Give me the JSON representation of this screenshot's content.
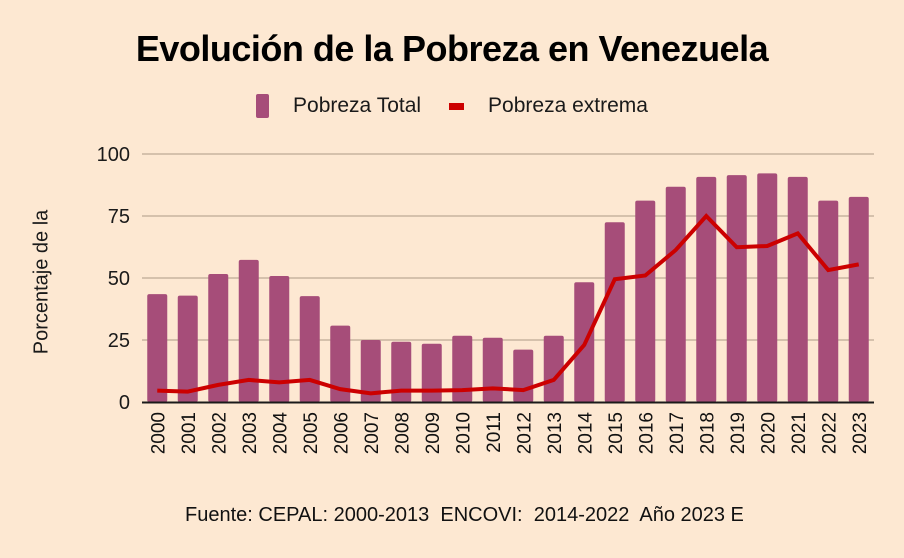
{
  "chart_data": {
    "type": "bar",
    "title": "Evolución de la Pobreza en Venezuela",
    "xlabel": "",
    "ylabel": "Porcentaje de la",
    "ylim": [
      0,
      100
    ],
    "yticks": [
      0,
      25,
      50,
      75,
      100
    ],
    "grid": true,
    "legend": "top-center",
    "categories": [
      "2000",
      "2001",
      "2002",
      "2003",
      "2004",
      "2005",
      "2006",
      "2007",
      "2008",
      "2009",
      "2010",
      "2011",
      "2012",
      "2013",
      "2014",
      "2015",
      "2016",
      "2017",
      "2018",
      "2019",
      "2020",
      "2021",
      "2022",
      "2023"
    ],
    "series": [
      {
        "name": "Pobreza Total",
        "type": "bar",
        "color": "#a64d79",
        "values": [
          43.5,
          42.9,
          51.6,
          57.3,
          50.8,
          42.7,
          30.8,
          25.0,
          24.3,
          23.5,
          26.7,
          25.9,
          21.1,
          26.7,
          48.3,
          72.5,
          81.2,
          86.8,
          90.8,
          91.5,
          92.2,
          90.8,
          81.2,
          82.7
        ]
      },
      {
        "name": "Pobreza extrema",
        "type": "line",
        "color": "#cc0000",
        "values": [
          4.6,
          4.2,
          6.9,
          8.9,
          7.9,
          8.9,
          5.2,
          3.5,
          4.6,
          4.6,
          4.8,
          5.5,
          4.8,
          8.9,
          23.0,
          49.5,
          51.0,
          61.3,
          75.0,
          62.4,
          62.9,
          68.0,
          53.2,
          55.5
        ]
      }
    ],
    "footer": "Fuente: CEPAL: 2000-2013  ENCOVI:  2014-2022  Año 2023 E"
  },
  "colors": {
    "background": "#fde8d2",
    "gridline": "#c8b4a0",
    "axis": "#1a1a1a"
  }
}
